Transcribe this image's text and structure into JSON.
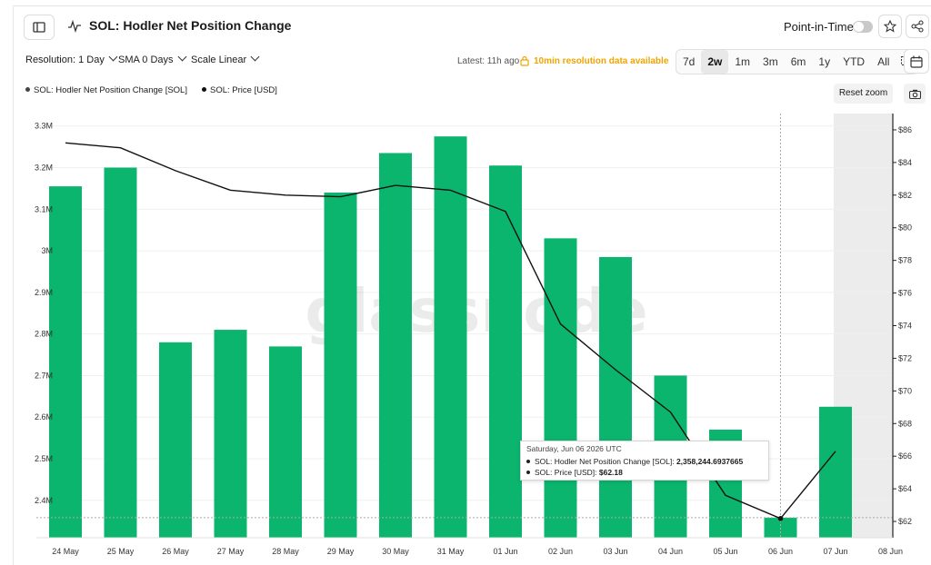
{
  "header": {
    "title": "SOL: Hodler Net Position Change",
    "point_in_time_label": "Point-in-Time"
  },
  "controls": {
    "resolution": "Resolution: 1 Day",
    "sma": "SMA 0 Days",
    "scale": "Scale Linear",
    "latest": "Latest: 11h ago",
    "availability": "10min resolution data available",
    "ranges": [
      "7d",
      "2w",
      "1m",
      "3m",
      "6m",
      "1y",
      "YTD",
      "All"
    ],
    "active_range": "2w",
    "reset_zoom": "Reset zoom"
  },
  "legend": {
    "series_1": "SOL: Hodler Net Position Change [SOL]",
    "series_2": "SOL: Price [USD]"
  },
  "watermark": "glassnode",
  "tooltip": {
    "date": "Saturday, Jun 06 2026 UTC",
    "row1_label": "SOL: Hodler Net Position Change [SOL]:",
    "row1_value": "2,358,244.6937665",
    "row2_label": "SOL: Price [USD]:",
    "row2_value": "$62.18"
  },
  "colors": {
    "bar": "#0bb56e",
    "line": "#111111",
    "shaded": "#ececec"
  },
  "chart_data": {
    "type": "bar",
    "categories": [
      "24 May",
      "25 May",
      "26 May",
      "27 May",
      "28 May",
      "29 May",
      "30 May",
      "31 May",
      "01 Jun",
      "02 Jun",
      "03 Jun",
      "04 Jun",
      "05 Jun",
      "06 Jun",
      "07 Jun"
    ],
    "x_tick_labels": [
      "24 May",
      "25 May",
      "26 May",
      "27 May",
      "28 May",
      "29 May",
      "30 May",
      "31 May",
      "01 Jun",
      "02 Jun",
      "03 Jun",
      "04 Jun",
      "05 Jun",
      "06 Jun",
      "07 Jun",
      "08 Jun"
    ],
    "series": [
      {
        "name": "SOL: Hodler Net Position Change [SOL]",
        "type": "bar",
        "axis": "left",
        "values": [
          3155000,
          3200000,
          2780000,
          2810000,
          2770000,
          3140000,
          3235000,
          3275000,
          3205000,
          3030000,
          2985000,
          2700000,
          2570000,
          2358244.6937665,
          2625000
        ]
      },
      {
        "name": "SOL: Price [USD]",
        "type": "line",
        "axis": "right",
        "values": [
          85.2,
          84.9,
          83.5,
          82.3,
          82.0,
          81.9,
          82.6,
          82.3,
          81.0,
          74.1,
          71.3,
          68.7,
          63.6,
          62.18,
          66.3
        ]
      }
    ],
    "y_left": {
      "ylim": [
        2310000,
        3330000
      ],
      "ticks": [
        2400000,
        2500000,
        2600000,
        2700000,
        2800000,
        2900000,
        3000000,
        3100000,
        3200000,
        3300000
      ],
      "tick_labels": [
        "2.4M",
        "2.5M",
        "2.6M",
        "2.7M",
        "2.8M",
        "2.9M",
        "3M",
        "3.1M",
        "3.2M",
        "3.3M"
      ]
    },
    "y_right": {
      "ylim": [
        61,
        87
      ],
      "ticks": [
        62,
        64,
        66,
        68,
        70,
        72,
        74,
        76,
        78,
        80,
        82,
        84,
        86
      ],
      "tick_labels": [
        "$62",
        "$64",
        "$66",
        "$68",
        "$70",
        "$72",
        "$74",
        "$76",
        "$78",
        "$80",
        "$82",
        "$84",
        "$86"
      ]
    },
    "grid": true,
    "highlight_index": 13
  }
}
